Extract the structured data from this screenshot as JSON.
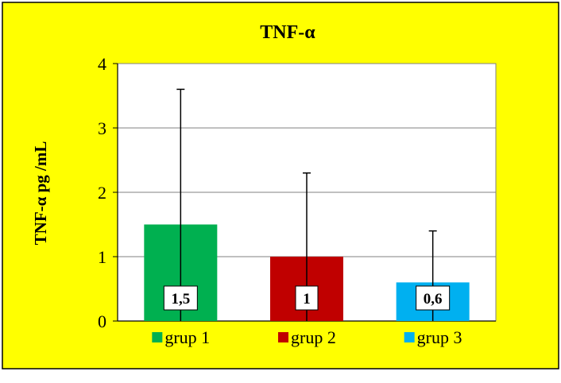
{
  "chart_data": {
    "type": "bar",
    "title": "TNF-α",
    "ylabel": "TNF-α     pg /mL",
    "xlabel": "",
    "ylim": [
      0,
      4
    ],
    "yticks": [
      0,
      1,
      2,
      3,
      4
    ],
    "grid": true,
    "legend_position": "bottom",
    "background_color": "#ffff00",
    "plot_background": "#ffffff",
    "series": [
      {
        "name": "grup 1",
        "value": 1.5,
        "error_upper": 3.6,
        "error_lower": 0,
        "label": "1,5",
        "color": "#00b050"
      },
      {
        "name": "grup 2",
        "value": 1.0,
        "error_upper": 2.3,
        "error_lower": 0,
        "label": "1",
        "color": "#c00000"
      },
      {
        "name": "grup 3",
        "value": 0.6,
        "error_upper": 1.4,
        "error_lower": 0,
        "label": "0,6",
        "color": "#00b0f0"
      }
    ]
  }
}
